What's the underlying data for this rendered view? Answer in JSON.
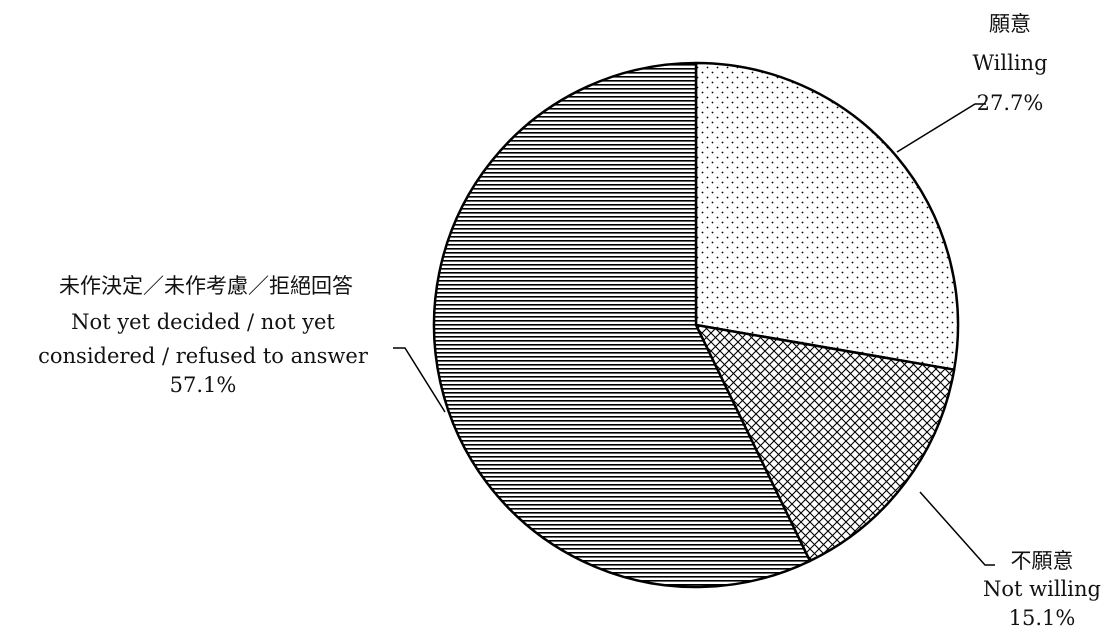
{
  "chart_data": {
    "type": "pie",
    "start_angle": "12 o'clock",
    "direction": "clockwise",
    "slices": [
      {
        "value": 27.7,
        "label_zh": "願意",
        "label_en": [
          "Willing"
        ],
        "value_label": "27.7%",
        "pattern": "dots"
      },
      {
        "value": 15.1,
        "label_zh": "不願意",
        "label_en": [
          "Not willing"
        ],
        "value_label": "15.1%",
        "pattern": "crosshatch"
      },
      {
        "value": 57.1,
        "label_zh": "未作決定／未作考慮／拒絕回答",
        "label_en": [
          "Not yet decided / not yet",
          "considered / refused to answer"
        ],
        "value_label": "57.1%",
        "pattern": "horizontal-lines"
      }
    ],
    "colors": {
      "outline": "#000000",
      "fill_background": "#ffffff",
      "pattern_ink": "#000000",
      "text": "#111111"
    }
  }
}
